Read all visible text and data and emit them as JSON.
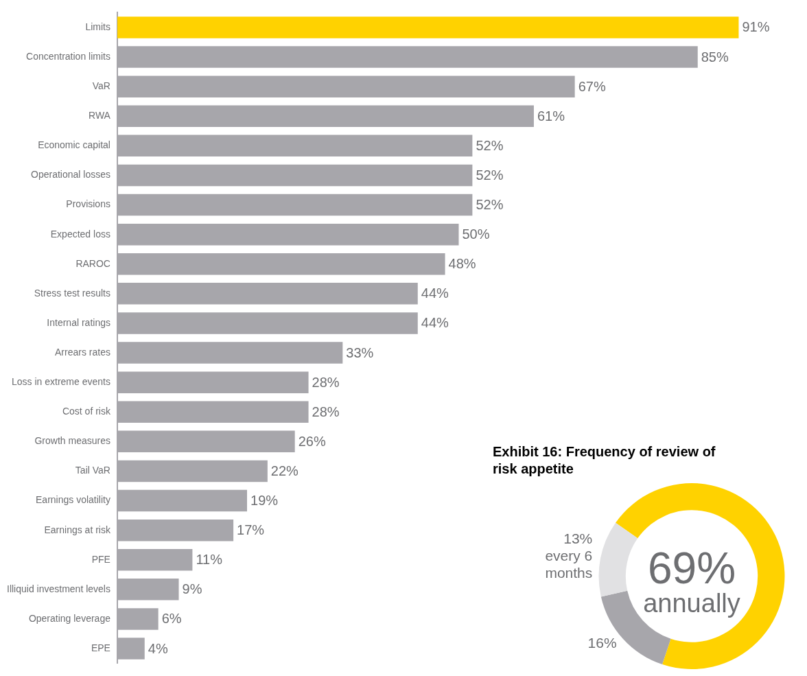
{
  "chart_data": [
    {
      "type": "bar",
      "orientation": "horizontal",
      "categories": [
        "Limits",
        "Concentration limits",
        "VaR",
        "RWA",
        "Economic capital",
        "Operational losses",
        "Provisions",
        "Expected loss",
        "RAROC",
        "Stress test results",
        "Internal ratings",
        "Arrears rates",
        "Loss in extreme events",
        "Cost of risk",
        "Growth measures",
        "Tail VaR",
        "Earnings volatility",
        "Earnings at risk",
        "PFE",
        "Illiquid investment levels",
        "Operating leverage",
        "EPE"
      ],
      "values": [
        91,
        85,
        67,
        61,
        52,
        52,
        52,
        50,
        48,
        44,
        44,
        33,
        28,
        28,
        26,
        22,
        19,
        17,
        11,
        9,
        6,
        4
      ],
      "colors": [
        "#ffd200",
        "#a7a6ab",
        "#a7a6ab",
        "#a7a6ab",
        "#a7a6ab",
        "#a7a6ab",
        "#a7a6ab",
        "#a7a6ab",
        "#a7a6ab",
        "#a7a6ab",
        "#a7a6ab",
        "#a7a6ab",
        "#a7a6ab",
        "#a7a6ab",
        "#a7a6ab",
        "#a7a6ab",
        "#a7a6ab",
        "#a7a6ab",
        "#a7a6ab",
        "#a7a6ab",
        "#a7a6ab",
        "#a7a6ab"
      ],
      "value_labels": [
        "91%",
        "85%",
        "67%",
        "61%",
        "52%",
        "52%",
        "52%",
        "50%",
        "48%",
        "44%",
        "44%",
        "33%",
        "28%",
        "28%",
        "26%",
        "22%",
        "19%",
        "17%",
        "11%",
        "9%",
        "6%",
        "4%"
      ],
      "legend": false
    },
    {
      "type": "donut",
      "title": "Exhibit 16: Frequency of review of risk appetite",
      "categories": [
        "annually",
        null,
        "every 6 months"
      ],
      "values": [
        69,
        16,
        13
      ],
      "colors": [
        "#ffd200",
        "#a7a6ab",
        "#e1e1e3"
      ],
      "value_labels": [
        "69%",
        "16%",
        "13%"
      ],
      "legend": false
    }
  ]
}
